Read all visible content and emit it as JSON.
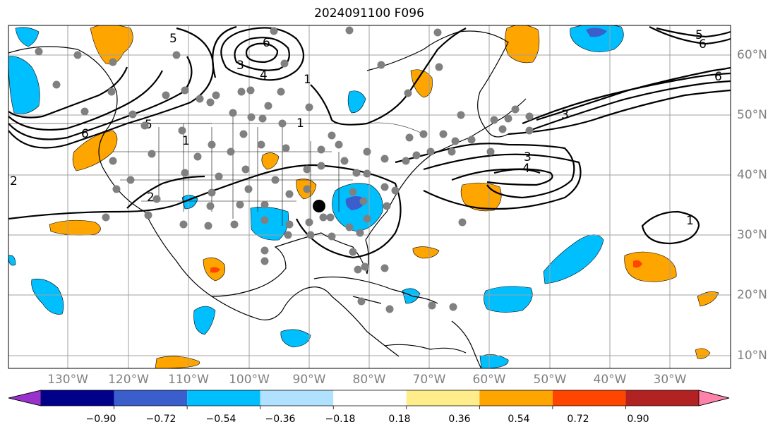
{
  "title": "2024091100 F096",
  "longitude_labels": [
    "130°W",
    "120°W",
    "110°W",
    "100°W",
    "90°W",
    "80°W",
    "70°W",
    "60°W",
    "50°W",
    "40°W",
    "30°W"
  ],
  "latitude_labels": [
    "60°N",
    "50°N",
    "40°N",
    "30°N",
    "20°N",
    "10°N"
  ],
  "colorbar": {
    "tick_labels": [
      "−0.90",
      "−0.72",
      "−0.54",
      "−0.36",
      "−0.18",
      "0.18",
      "0.36",
      "0.54",
      "0.72",
      "0.90"
    ],
    "colors": [
      "#9932cc",
      "#00008b",
      "#3a5fcd",
      "#00bfff",
      "#b0e2ff",
      "#ffffff",
      "#ffec8b",
      "#ffa500",
      "#ff4500",
      "#b22222",
      "#ff82ab"
    ]
  },
  "contour_labels": [
    "6",
    "5",
    "4",
    "3",
    "2",
    "1",
    "6",
    "5",
    "1",
    "2",
    "1",
    "6",
    "3",
    "3",
    "4",
    "5",
    "6",
    "1"
  ],
  "marker": {
    "type": "filled-circle",
    "color": "#000000"
  },
  "station_color": "#808080",
  "map_colors": {
    "coast": "#000000",
    "grid": "#a0a0a0"
  }
}
